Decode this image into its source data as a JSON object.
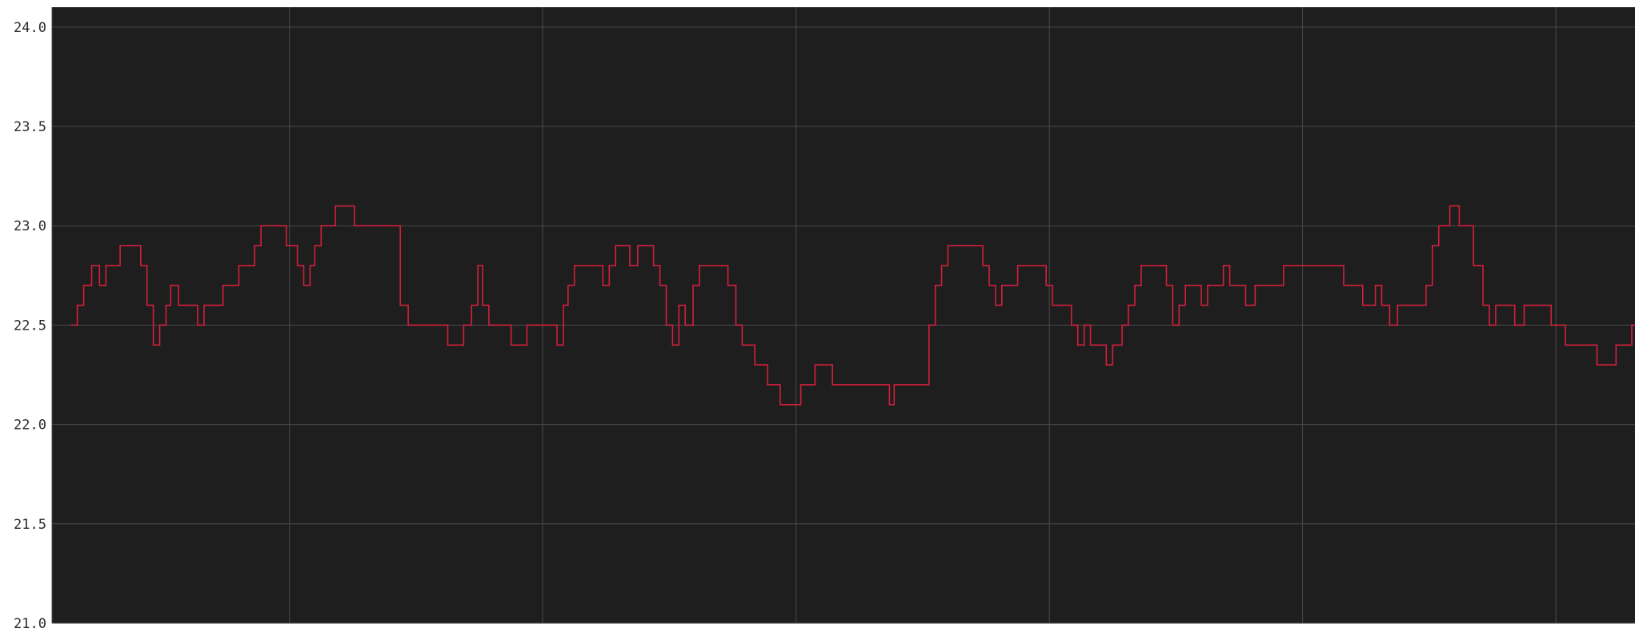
{
  "chart_data": {
    "type": "line",
    "title": "",
    "xlabel": "",
    "ylabel": "",
    "ylim": [
      21.0,
      24.1
    ],
    "grid": true,
    "y_ticks": [
      "24.0",
      "23.5",
      "23.0",
      "22.5",
      "22.0",
      "21.5",
      "21.0"
    ],
    "y_tick_values": [
      24.0,
      23.5,
      23.0,
      22.5,
      22.0,
      21.5,
      21.0
    ],
    "x_range": [
      0,
      100
    ],
    "x_gridlines": [
      0,
      15,
      31,
      47,
      63,
      79,
      95
    ],
    "colors": {
      "background": "#1e1e1e",
      "line": "#d21f3c",
      "grid": "#4a4a4a"
    },
    "series": [
      {
        "points": [
          [
            1.2,
            22.5
          ],
          [
            1.6,
            22.6
          ],
          [
            2.0,
            22.7
          ],
          [
            2.5,
            22.8
          ],
          [
            3.0,
            22.7
          ],
          [
            3.4,
            22.8
          ],
          [
            4.0,
            22.8
          ],
          [
            4.3,
            22.9
          ],
          [
            5.2,
            22.9
          ],
          [
            5.6,
            22.8
          ],
          [
            6.0,
            22.6
          ],
          [
            6.4,
            22.4
          ],
          [
            6.8,
            22.5
          ],
          [
            7.2,
            22.6
          ],
          [
            7.5,
            22.7
          ],
          [
            8.0,
            22.6
          ],
          [
            8.5,
            22.6
          ],
          [
            9.2,
            22.5
          ],
          [
            9.6,
            22.6
          ],
          [
            10.2,
            22.6
          ],
          [
            10.8,
            22.7
          ],
          [
            11.4,
            22.7
          ],
          [
            11.8,
            22.8
          ],
          [
            12.4,
            22.8
          ],
          [
            12.8,
            22.9
          ],
          [
            13.2,
            23.0
          ],
          [
            14.4,
            23.0
          ],
          [
            14.8,
            22.9
          ],
          [
            15.5,
            22.8
          ],
          [
            15.9,
            22.7
          ],
          [
            16.3,
            22.8
          ],
          [
            16.6,
            22.9
          ],
          [
            17.0,
            23.0
          ],
          [
            17.6,
            23.0
          ],
          [
            17.9,
            23.1
          ],
          [
            18.8,
            23.1
          ],
          [
            19.1,
            23.0
          ],
          [
            21.4,
            23.0
          ],
          [
            22.0,
            22.6
          ],
          [
            22.5,
            22.5
          ],
          [
            24.5,
            22.5
          ],
          [
            25.0,
            22.4
          ],
          [
            25.6,
            22.4
          ],
          [
            26.0,
            22.5
          ],
          [
            26.5,
            22.6
          ],
          [
            26.9,
            22.8
          ],
          [
            27.2,
            22.6
          ],
          [
            27.6,
            22.5
          ],
          [
            28.6,
            22.5
          ],
          [
            29.0,
            22.4
          ],
          [
            29.6,
            22.4
          ],
          [
            30.0,
            22.5
          ],
          [
            31.5,
            22.5
          ],
          [
            31.9,
            22.4
          ],
          [
            32.3,
            22.6
          ],
          [
            32.6,
            22.7
          ],
          [
            33.0,
            22.8
          ],
          [
            34.4,
            22.8
          ],
          [
            34.8,
            22.7
          ],
          [
            35.2,
            22.8
          ],
          [
            35.6,
            22.9
          ],
          [
            36.2,
            22.9
          ],
          [
            36.5,
            22.8
          ],
          [
            37.0,
            22.9
          ],
          [
            37.6,
            22.9
          ],
          [
            38.0,
            22.8
          ],
          [
            38.4,
            22.7
          ],
          [
            38.8,
            22.5
          ],
          [
            39.2,
            22.4
          ],
          [
            39.6,
            22.6
          ],
          [
            40.0,
            22.5
          ],
          [
            40.5,
            22.7
          ],
          [
            40.9,
            22.8
          ],
          [
            42.3,
            22.8
          ],
          [
            42.7,
            22.7
          ],
          [
            43.2,
            22.5
          ],
          [
            43.6,
            22.4
          ],
          [
            44.0,
            22.4
          ],
          [
            44.4,
            22.3
          ],
          [
            44.8,
            22.3
          ],
          [
            45.2,
            22.2
          ],
          [
            45.6,
            22.2
          ],
          [
            46.0,
            22.1
          ],
          [
            47.0,
            22.1
          ],
          [
            47.3,
            22.2
          ],
          [
            47.8,
            22.2
          ],
          [
            48.2,
            22.3
          ],
          [
            49.0,
            22.3
          ],
          [
            49.3,
            22.2
          ],
          [
            52.6,
            22.2
          ],
          [
            52.9,
            22.1
          ],
          [
            53.2,
            22.2
          ],
          [
            55.0,
            22.2
          ],
          [
            55.4,
            22.5
          ],
          [
            55.8,
            22.7
          ],
          [
            56.2,
            22.8
          ],
          [
            56.6,
            22.9
          ],
          [
            58.4,
            22.9
          ],
          [
            58.8,
            22.8
          ],
          [
            59.2,
            22.7
          ],
          [
            59.6,
            22.6
          ],
          [
            60.0,
            22.7
          ],
          [
            60.6,
            22.7
          ],
          [
            61.0,
            22.8
          ],
          [
            62.3,
            22.8
          ],
          [
            62.8,
            22.7
          ],
          [
            63.2,
            22.6
          ],
          [
            64.0,
            22.6
          ],
          [
            64.4,
            22.5
          ],
          [
            64.8,
            22.4
          ],
          [
            65.2,
            22.5
          ],
          [
            65.6,
            22.4
          ],
          [
            66.2,
            22.4
          ],
          [
            66.6,
            22.3
          ],
          [
            67.0,
            22.4
          ],
          [
            67.6,
            22.5
          ],
          [
            68.0,
            22.6
          ],
          [
            68.4,
            22.7
          ],
          [
            68.8,
            22.8
          ],
          [
            70.0,
            22.8
          ],
          [
            70.4,
            22.7
          ],
          [
            70.8,
            22.5
          ],
          [
            71.2,
            22.6
          ],
          [
            71.6,
            22.7
          ],
          [
            72.2,
            22.7
          ],
          [
            72.6,
            22.6
          ],
          [
            73.0,
            22.7
          ],
          [
            73.6,
            22.7
          ],
          [
            74.0,
            22.8
          ],
          [
            74.4,
            22.7
          ],
          [
            75.0,
            22.7
          ],
          [
            75.4,
            22.6
          ],
          [
            76.0,
            22.7
          ],
          [
            77.5,
            22.7
          ],
          [
            77.8,
            22.8
          ],
          [
            81.2,
            22.8
          ],
          [
            81.6,
            22.7
          ],
          [
            82.4,
            22.7
          ],
          [
            82.8,
            22.6
          ],
          [
            83.2,
            22.6
          ],
          [
            83.6,
            22.7
          ],
          [
            84.0,
            22.6
          ],
          [
            84.5,
            22.5
          ],
          [
            85.0,
            22.6
          ],
          [
            86.4,
            22.6
          ],
          [
            86.8,
            22.7
          ],
          [
            87.2,
            22.9
          ],
          [
            87.6,
            23.0
          ],
          [
            88.0,
            23.0
          ],
          [
            88.3,
            23.1
          ],
          [
            88.9,
            23.0
          ],
          [
            89.4,
            23.0
          ],
          [
            89.8,
            22.8
          ],
          [
            90.4,
            22.6
          ],
          [
            90.8,
            22.5
          ],
          [
            91.2,
            22.6
          ],
          [
            92.0,
            22.6
          ],
          [
            92.4,
            22.5
          ],
          [
            93.0,
            22.6
          ],
          [
            94.3,
            22.6
          ],
          [
            94.7,
            22.5
          ],
          [
            95.2,
            22.5
          ],
          [
            95.6,
            22.4
          ],
          [
            97.2,
            22.4
          ],
          [
            97.6,
            22.3
          ],
          [
            98.4,
            22.3
          ],
          [
            98.8,
            22.4
          ],
          [
            99.4,
            22.4
          ],
          [
            99.8,
            22.5
          ],
          [
            100.0,
            22.5
          ]
        ]
      }
    ]
  }
}
